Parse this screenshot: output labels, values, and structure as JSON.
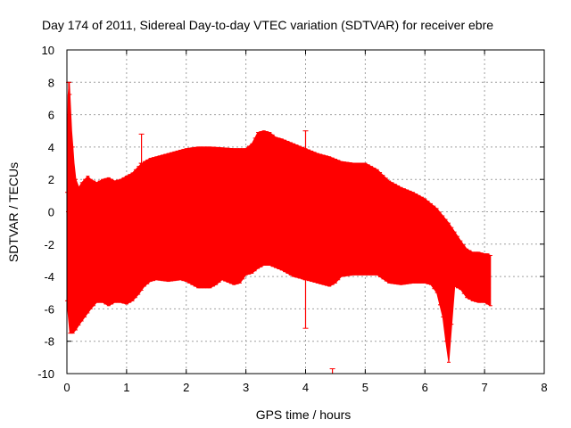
{
  "chart_data": {
    "type": "area",
    "title": "Day 174 of 2011, Sidereal Day-to-day VTEC variation (SDTVAR) for receiver ebre",
    "xlabel": "GPS time / hours",
    "ylabel": "SDTVAR / TECUs",
    "xlim": [
      0,
      8
    ],
    "ylim": [
      -10,
      10
    ],
    "xticks": [
      0,
      1,
      2,
      3,
      4,
      5,
      6,
      7,
      8
    ],
    "yticks": [
      -10,
      -8,
      -6,
      -4,
      -2,
      0,
      2,
      4,
      6,
      8,
      10
    ],
    "grid": true,
    "series": [
      {
        "name": "SDTVAR",
        "color": "#ff0000",
        "upper": {
          "x": [
            0.0,
            0.02,
            0.04,
            0.06,
            0.08,
            0.1,
            0.12,
            0.15,
            0.2,
            0.25,
            0.3,
            0.35,
            0.4,
            0.5,
            0.6,
            0.7,
            0.8,
            0.9,
            1.0,
            1.1,
            1.2,
            1.3,
            1.4,
            1.5,
            1.6,
            1.7,
            1.8,
            1.9,
            2.0,
            2.2,
            2.4,
            2.6,
            2.8,
            3.0,
            3.1,
            3.2,
            3.3,
            3.4,
            3.5,
            3.6,
            3.8,
            4.0,
            4.2,
            4.4,
            4.6,
            4.8,
            5.0,
            5.2,
            5.4,
            5.6,
            5.8,
            6.0,
            6.2,
            6.4,
            6.6,
            6.7,
            6.8,
            6.9,
            7.0,
            7.05,
            7.1
          ],
          "y": [
            1.2,
            7.2,
            8.0,
            6.5,
            5.0,
            4.0,
            3.0,
            2.0,
            1.5,
            1.8,
            2.0,
            2.2,
            2.0,
            1.8,
            2.0,
            2.1,
            1.9,
            2.0,
            2.2,
            2.4,
            2.8,
            3.1,
            3.3,
            3.4,
            3.5,
            3.6,
            3.7,
            3.8,
            3.9,
            4.0,
            4.0,
            3.95,
            3.9,
            3.9,
            4.2,
            4.9,
            5.0,
            4.9,
            4.6,
            4.5,
            4.2,
            3.9,
            3.6,
            3.4,
            3.1,
            3.0,
            3.0,
            2.6,
            1.9,
            1.5,
            1.2,
            0.8,
            0.2,
            -0.7,
            -1.8,
            -2.3,
            -2.5,
            -2.5,
            -2.6,
            -2.6,
            -2.7
          ]
        },
        "lower": {
          "x": [
            0.0,
            0.05,
            0.1,
            0.15,
            0.2,
            0.3,
            0.4,
            0.5,
            0.6,
            0.7,
            0.8,
            0.9,
            1.0,
            1.1,
            1.2,
            1.3,
            1.4,
            1.5,
            1.7,
            1.9,
            2.0,
            2.2,
            2.4,
            2.5,
            2.6,
            2.8,
            2.9,
            3.0,
            3.1,
            3.2,
            3.3,
            3.4,
            3.6,
            3.8,
            4.0,
            4.2,
            4.4,
            4.5,
            4.6,
            4.8,
            5.0,
            5.2,
            5.4,
            5.6,
            5.8,
            6.0,
            6.1,
            6.2,
            6.3,
            6.35,
            6.4,
            6.5,
            6.6,
            6.7,
            6.8,
            6.9,
            7.0,
            7.05,
            7.1
          ],
          "y": [
            -5.5,
            -7.5,
            -7.5,
            -7.3,
            -7.0,
            -6.5,
            -6.0,
            -5.6,
            -5.6,
            -5.8,
            -5.6,
            -5.6,
            -5.7,
            -5.5,
            -5.1,
            -4.6,
            -4.3,
            -4.2,
            -4.3,
            -4.2,
            -4.3,
            -4.7,
            -4.7,
            -4.5,
            -4.2,
            -4.5,
            -4.4,
            -3.9,
            -3.8,
            -3.5,
            -3.3,
            -3.3,
            -3.6,
            -4.0,
            -4.2,
            -4.4,
            -4.6,
            -4.4,
            -4.0,
            -3.9,
            -3.9,
            -3.9,
            -4.4,
            -4.5,
            -4.4,
            -4.4,
            -4.5,
            -5.0,
            -6.5,
            -8.0,
            -9.3,
            -4.6,
            -4.8,
            -5.3,
            -5.5,
            -5.6,
            -5.6,
            -5.7,
            -5.8
          ]
        },
        "spikes": [
          {
            "x": 0.03,
            "y_top": 8.0,
            "y_bottom": 0.0
          },
          {
            "x": 1.25,
            "y_top": 4.8,
            "y_bottom": 3.0
          },
          {
            "x": 4.0,
            "y_top": 5.0,
            "y_bottom": 3.5
          },
          {
            "x": 4.0,
            "y_top": -4.2,
            "y_bottom": -7.2
          },
          {
            "x": 4.45,
            "y_top": -9.7,
            "y_bottom": -10.0
          }
        ]
      }
    ]
  }
}
